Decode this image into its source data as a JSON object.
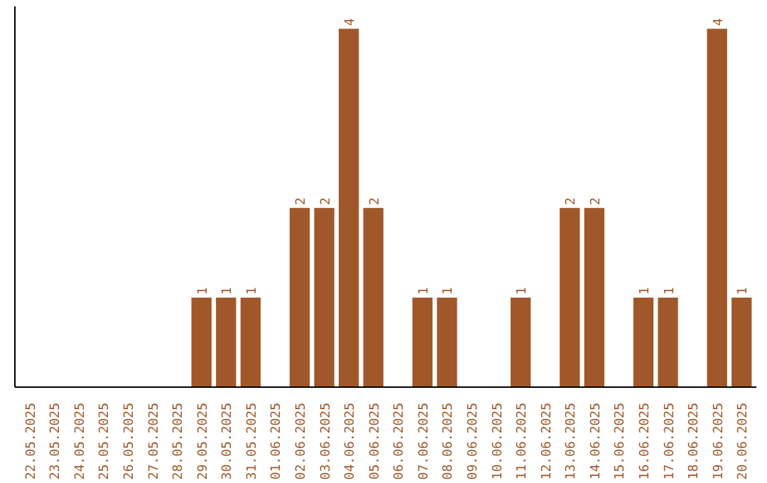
{
  "chart_data": {
    "type": "bar",
    "categories": [
      "22.05.2025",
      "23.05.2025",
      "24.05.2025",
      "25.05.2025",
      "26.05.2025",
      "27.05.2025",
      "28.05.2025",
      "29.05.2025",
      "30.05.2025",
      "31.05.2025",
      "01.06.2025",
      "02.06.2025",
      "03.06.2025",
      "04.06.2025",
      "05.06.2025",
      "06.06.2025",
      "07.06.2025",
      "08.06.2025",
      "09.06.2025",
      "10.06.2025",
      "11.06.2025",
      "12.06.2025",
      "13.06.2025",
      "14.06.2025",
      "15.06.2025",
      "16.06.2025",
      "17.06.2025",
      "18.06.2025",
      "19.06.2025",
      "20.06.2025"
    ],
    "values": [
      0,
      0,
      0,
      0,
      0,
      0,
      0,
      1,
      1,
      1,
      0,
      2,
      2,
      4,
      2,
      0,
      1,
      1,
      0,
      0,
      1,
      0,
      2,
      2,
      0,
      1,
      1,
      0,
      4,
      1
    ],
    "value_labels": [
      null,
      null,
      null,
      null,
      null,
      null,
      null,
      "1",
      "1",
      "1",
      null,
      "2",
      "2",
      "4",
      "2",
      null,
      "1",
      "1",
      null,
      null,
      "1",
      null,
      "2",
      "2",
      null,
      "1",
      "1",
      null,
      "4",
      "1"
    ],
    "color": "#a0582a",
    "ylim": [
      0,
      4.25
    ],
    "tick_labels": "x",
    "grid": false
  }
}
